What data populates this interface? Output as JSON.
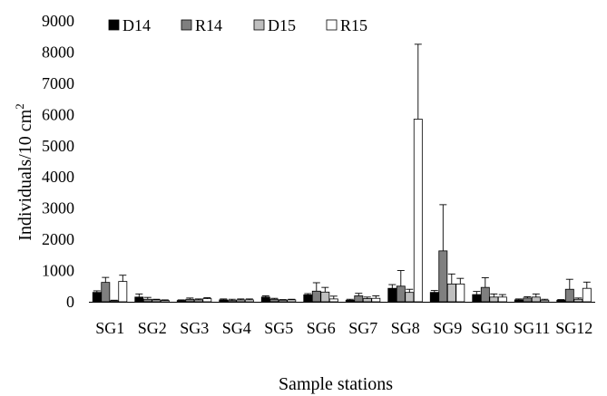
{
  "chart_data": {
    "type": "bar",
    "xlabel": "Sample stations",
    "ylabel": "Individuals/10 cm",
    "ylabel_superscript": "2",
    "ylim": [
      0,
      9000
    ],
    "yticks": [
      "0",
      "1000",
      "2000",
      "3000",
      "4000",
      "5000",
      "6000",
      "7000",
      "8000",
      "9000"
    ],
    "grid": false,
    "legend_position": "top-left",
    "categories": [
      "SG1",
      "SG2",
      "SG3",
      "SG4",
      "SG5",
      "SG6",
      "SG7",
      "SG8",
      "SG9",
      "SG10",
      "SG11",
      "SG12"
    ],
    "series": [
      {
        "name": "D14",
        "color": "#000000",
        "values": [
          300,
          150,
          40,
          60,
          150,
          220,
          50,
          430,
          300,
          230,
          60,
          50
        ],
        "errors": [
          50,
          100,
          20,
          30,
          40,
          40,
          30,
          120,
          60,
          100,
          30,
          20
        ]
      },
      {
        "name": "R14",
        "color": "#7f7f7f",
        "values": [
          620,
          80,
          80,
          40,
          80,
          340,
          190,
          500,
          1630,
          460,
          120,
          400
        ],
        "errors": [
          160,
          60,
          40,
          40,
          30,
          270,
          80,
          500,
          1480,
          310,
          40,
          320
        ]
      },
      {
        "name": "D15",
        "color": "#bfbfbf",
        "values": [
          30,
          60,
          60,
          60,
          50,
          310,
          100,
          300,
          570,
          150,
          150,
          80
        ],
        "errors": [
          20,
          20,
          30,
          30,
          20,
          150,
          50,
          100,
          320,
          100,
          100,
          40
        ]
      },
      {
        "name": "R15",
        "color": "#ffffff",
        "values": [
          650,
          40,
          100,
          60,
          60,
          90,
          110,
          5850,
          570,
          150,
          50,
          430
        ],
        "errors": [
          200,
          20,
          30,
          30,
          20,
          90,
          80,
          2400,
          180,
          80,
          30,
          200
        ]
      }
    ]
  }
}
